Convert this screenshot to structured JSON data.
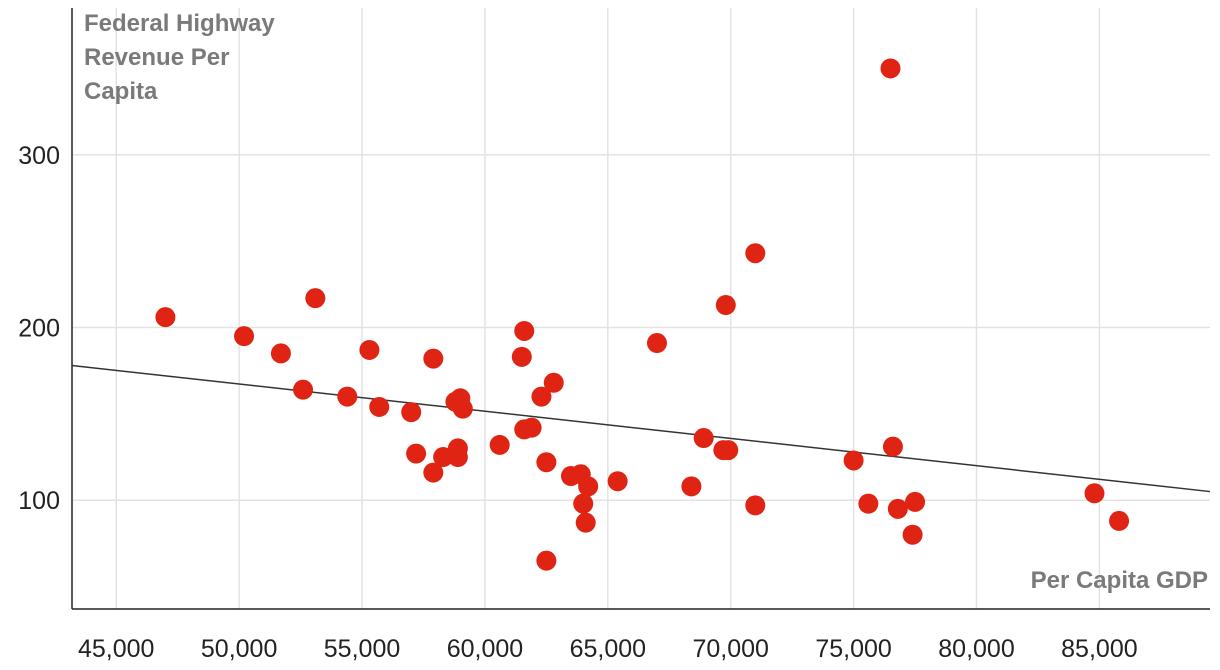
{
  "chart_data": {
    "type": "scatter",
    "ylabel_lines": [
      "Federal Highway",
      "Revenue Per",
      "Capita"
    ],
    "xlabel": "Per Capita GDP",
    "xlim": [
      43200,
      89500
    ],
    "ylim": [
      37,
      385
    ],
    "x_ticks": [
      45000,
      50000,
      55000,
      60000,
      65000,
      70000,
      75000,
      80000,
      85000
    ],
    "x_tick_labels": [
      "45,000",
      "50,000",
      "55,000",
      "60,000",
      "65,000",
      "70,000",
      "75,000",
      "80,000",
      "85,000"
    ],
    "y_ticks": [
      100,
      200,
      300
    ],
    "y_tick_labels": [
      "100",
      "200",
      "300"
    ],
    "grid": true,
    "marker_color": "#e02414",
    "trend_color": "#333333",
    "trendline": {
      "x": [
        43200,
        89500
      ],
      "y": [
        178,
        105
      ]
    },
    "points": [
      {
        "x": 47000,
        "y": 206
      },
      {
        "x": 50200,
        "y": 195
      },
      {
        "x": 51700,
        "y": 185
      },
      {
        "x": 52600,
        "y": 164
      },
      {
        "x": 53100,
        "y": 217
      },
      {
        "x": 54400,
        "y": 160
      },
      {
        "x": 55300,
        "y": 187
      },
      {
        "x": 55700,
        "y": 154
      },
      {
        "x": 57000,
        "y": 151
      },
      {
        "x": 57200,
        "y": 127
      },
      {
        "x": 57900,
        "y": 116
      },
      {
        "x": 57900,
        "y": 182
      },
      {
        "x": 58300,
        "y": 125
      },
      {
        "x": 58800,
        "y": 157
      },
      {
        "x": 58900,
        "y": 130
      },
      {
        "x": 58900,
        "y": 125
      },
      {
        "x": 59000,
        "y": 159
      },
      {
        "x": 59100,
        "y": 153
      },
      {
        "x": 60600,
        "y": 132
      },
      {
        "x": 61500,
        "y": 183
      },
      {
        "x": 61600,
        "y": 198
      },
      {
        "x": 61600,
        "y": 141
      },
      {
        "x": 61900,
        "y": 142
      },
      {
        "x": 62300,
        "y": 160
      },
      {
        "x": 62500,
        "y": 122
      },
      {
        "x": 62500,
        "y": 65
      },
      {
        "x": 62800,
        "y": 168
      },
      {
        "x": 63500,
        "y": 114
      },
      {
        "x": 63900,
        "y": 115
      },
      {
        "x": 64000,
        "y": 98
      },
      {
        "x": 64100,
        "y": 87
      },
      {
        "x": 64200,
        "y": 108
      },
      {
        "x": 65400,
        "y": 111
      },
      {
        "x": 67000,
        "y": 191
      },
      {
        "x": 68400,
        "y": 108
      },
      {
        "x": 68900,
        "y": 136
      },
      {
        "x": 69700,
        "y": 129
      },
      {
        "x": 69800,
        "y": 213
      },
      {
        "x": 69900,
        "y": 129
      },
      {
        "x": 71000,
        "y": 97
      },
      {
        "x": 71000,
        "y": 243
      },
      {
        "x": 75000,
        "y": 123
      },
      {
        "x": 75600,
        "y": 98
      },
      {
        "x": 76500,
        "y": 350
      },
      {
        "x": 76600,
        "y": 131
      },
      {
        "x": 76800,
        "y": 95
      },
      {
        "x": 77400,
        "y": 80
      },
      {
        "x": 77500,
        "y": 99
      },
      {
        "x": 84800,
        "y": 104
      },
      {
        "x": 85800,
        "y": 88
      }
    ]
  }
}
